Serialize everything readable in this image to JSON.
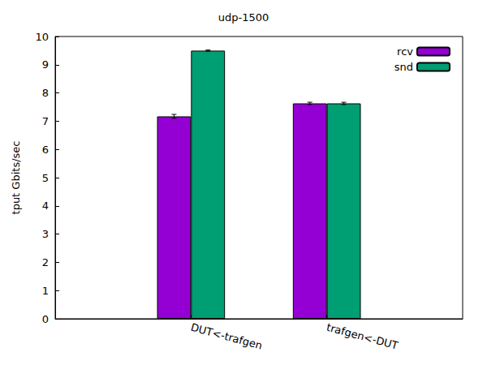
{
  "chart_data": {
    "type": "bar",
    "title": "udp-1500",
    "y_label": "tput Gbits/sec",
    "categories": [
      null,
      "DUT<-trafgen",
      "trafgen<-DUT",
      null
    ],
    "series": [
      {
        "name": "rcv",
        "color": "#9400d3",
        "values": [
          null,
          7.17,
          7.63,
          null
        ],
        "errors": [
          null,
          0.07,
          0.04,
          null
        ]
      },
      {
        "name": "snd",
        "color": "#009e73",
        "values": [
          null,
          9.5,
          7.63,
          null
        ],
        "errors": [
          null,
          0.02,
          0.04,
          null
        ]
      }
    ],
    "ylim": [
      0,
      10
    ],
    "yticks": [
      0,
      1,
      2,
      3,
      4,
      5,
      6,
      7,
      8,
      9,
      10
    ],
    "grid": false,
    "legend": "upper right"
  }
}
